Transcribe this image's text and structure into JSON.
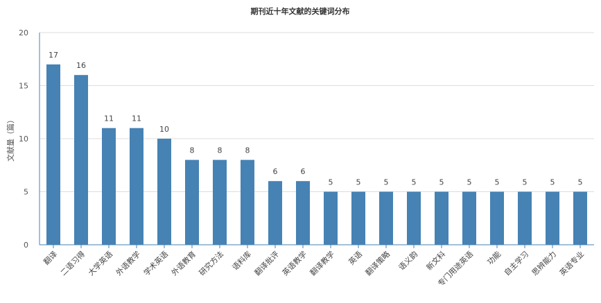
{
  "chart_data": {
    "type": "bar",
    "title": "期刊近十年文献的关键词分布",
    "xlabel": "",
    "ylabel": "文献量（篇）",
    "ylim": [
      0,
      20
    ],
    "yticks": [
      0,
      5,
      10,
      15,
      20
    ],
    "grid": true,
    "legend": "none",
    "bar_color": "#4682b4",
    "categories": [
      "翻译",
      "二语习得",
      "大学英语",
      "外语教学",
      "学术英语",
      "外语教育",
      "研究方法",
      "语料库",
      "翻译批评",
      "英语教学",
      "翻译教学",
      "英语",
      "翻译策略",
      "语义韵",
      "新文科",
      "专门用途英语",
      "功能",
      "自主学习",
      "思辨能力",
      "英语专业"
    ],
    "values": [
      17,
      16,
      11,
      11,
      10,
      8,
      8,
      8,
      6,
      6,
      5,
      5,
      5,
      5,
      5,
      5,
      5,
      5,
      5,
      5
    ]
  }
}
